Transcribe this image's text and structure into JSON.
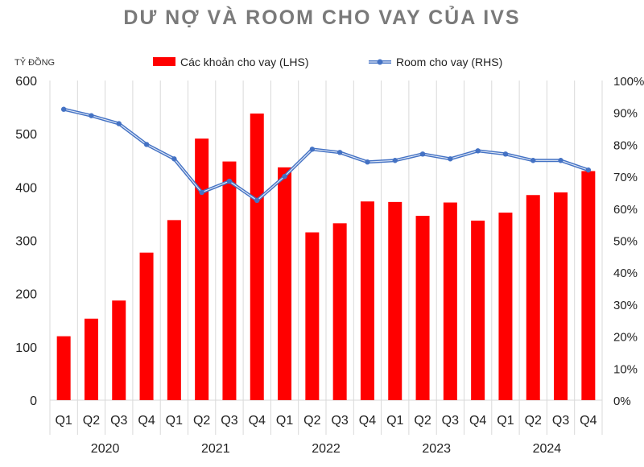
{
  "chart_data": {
    "type": "bar",
    "title": "DƯ NỢ VÀ ROOM CHO VAY CỦA IVS",
    "ylabel": "TỶ ĐỒNG",
    "y2label": "",
    "categories": [
      "Q1",
      "Q2",
      "Q3",
      "Q4",
      "Q1",
      "Q2",
      "Q3",
      "Q4",
      "Q1",
      "Q2",
      "Q3",
      "Q4",
      "Q1",
      "Q2",
      "Q3",
      "Q4",
      "Q1",
      "Q2",
      "Q3",
      "Q4"
    ],
    "years": [
      "2020",
      "2021",
      "2022",
      "2023",
      "2024"
    ],
    "ylim": [
      0,
      600
    ],
    "yticks": [
      "0",
      "100",
      "200",
      "300",
      "400",
      "500",
      "600"
    ],
    "y2lim": [
      0,
      100
    ],
    "y2ticks": [
      "0%",
      "10%",
      "20%",
      "30%",
      "40%",
      "50%",
      "60%",
      "70%",
      "80%",
      "90%",
      "100%"
    ],
    "legend_position": "top",
    "grid": "vertical",
    "series": [
      {
        "name": "Các khoản cho vay (LHS)",
        "type": "bar",
        "axis": "left",
        "color": "#ff0000",
        "values": [
          120,
          153,
          187,
          277,
          338,
          491,
          448,
          538,
          437,
          315,
          332,
          373,
          372,
          346,
          371,
          337,
          352,
          385,
          390,
          430
        ]
      },
      {
        "name": "Room cho vay (RHS)",
        "type": "line",
        "axis": "right",
        "color": "#4472c4",
        "values": [
          91,
          89,
          86.5,
          80,
          75.5,
          65,
          68.5,
          62.5,
          70,
          78.5,
          77.5,
          74.5,
          75,
          77,
          75.5,
          78,
          77,
          75,
          75,
          72
        ]
      }
    ]
  }
}
